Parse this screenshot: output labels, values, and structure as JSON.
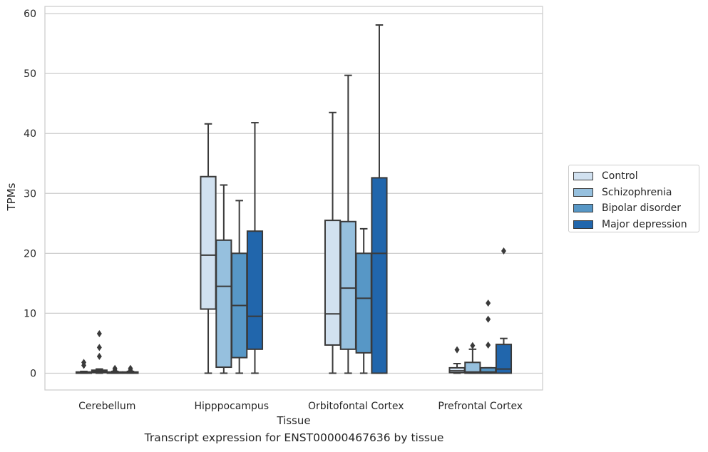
{
  "chart_data": {
    "type": "box",
    "xlabel": "Tissue",
    "ylabel": "TPMs",
    "caption": "Transcript expression for ENST00000467636 by tissue",
    "ylim": [
      -2.8,
      61.2
    ],
    "yticks": [
      0,
      10,
      20,
      30,
      40,
      50,
      60
    ],
    "grid": "horizontal",
    "legend_position": "right",
    "categories": [
      "Cerebellum",
      "Hipppocampus",
      "Orbitofontal Cortex",
      "Prefrontal Cortex"
    ],
    "series": [
      {
        "name": "Control",
        "color": "#d1e1f0",
        "boxes": [
          {
            "min": 0,
            "q1": 0,
            "median": 0.1,
            "q3": 0.2,
            "max": 0.3,
            "outliers": [
              1.3,
              1.8
            ]
          },
          {
            "min": 0,
            "q1": 10.7,
            "median": 19.7,
            "q3": 32.8,
            "max": 41.6,
            "outliers": []
          },
          {
            "min": 0,
            "q1": 4.7,
            "median": 9.9,
            "q3": 25.5,
            "max": 43.5,
            "outliers": []
          },
          {
            "min": 0,
            "q1": 0.1,
            "median": 0.4,
            "q3": 0.9,
            "max": 1.6,
            "outliers": [
              3.9
            ]
          }
        ]
      },
      {
        "name": "Schizophrenia",
        "color": "#96c0de",
        "boxes": [
          {
            "min": 0,
            "q1": 0.1,
            "median": 0.3,
            "q3": 0.5,
            "max": 0.7,
            "outliers": [
              2.8,
              4.3,
              6.6
            ]
          },
          {
            "min": 0,
            "q1": 1.0,
            "median": 14.5,
            "q3": 22.2,
            "max": 31.4,
            "outliers": []
          },
          {
            "min": 0,
            "q1": 4.0,
            "median": 14.2,
            "q3": 25.3,
            "max": 49.7,
            "outliers": []
          },
          {
            "min": 0,
            "q1": 0.0,
            "median": 0.2,
            "q3": 1.8,
            "max": 4.0,
            "outliers": [
              4.6
            ]
          }
        ]
      },
      {
        "name": "Bipolar disorder",
        "color": "#5797c6",
        "boxes": [
          {
            "min": 0,
            "q1": 0,
            "median": 0.1,
            "q3": 0.2,
            "max": 0.3,
            "outliers": [
              0.5,
              0.8
            ]
          },
          {
            "min": 0,
            "q1": 2.6,
            "median": 11.3,
            "q3": 20.0,
            "max": 28.8,
            "outliers": []
          },
          {
            "min": 0,
            "q1": 3.4,
            "median": 12.5,
            "q3": 20.0,
            "max": 24.1,
            "outliers": []
          },
          {
            "min": 0,
            "q1": 0.0,
            "median": 0.2,
            "q3": 0.9,
            "max": 0.9,
            "outliers": [
              4.7,
              9.0,
              11.7
            ]
          }
        ]
      },
      {
        "name": "Major depression",
        "color": "#2166ac",
        "boxes": [
          {
            "min": 0,
            "q1": 0,
            "median": 0.1,
            "q3": 0.2,
            "max": 0.3,
            "outliers": [
              0.5,
              0.8
            ]
          },
          {
            "min": 0,
            "q1": 4.0,
            "median": 9.5,
            "q3": 23.7,
            "max": 41.8,
            "outliers": []
          },
          {
            "min": 0,
            "q1": 0,
            "median": 20.0,
            "q3": 32.6,
            "max": 58.1,
            "outliers": []
          },
          {
            "min": 0,
            "q1": 0,
            "median": 0.7,
            "q3": 4.8,
            "max": 5.8,
            "outliers": [
              20.4
            ]
          }
        ]
      }
    ]
  }
}
